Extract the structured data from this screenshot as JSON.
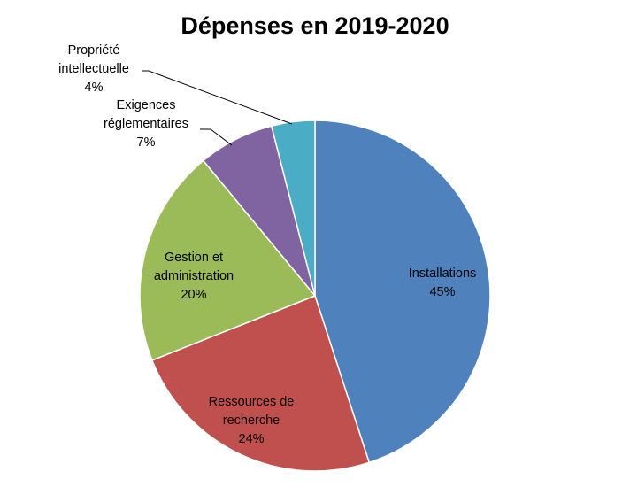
{
  "chart_data": {
    "type": "pie",
    "title": "Dépenses en 2019-2020",
    "slices": [
      {
        "lines": [
          "Installations"
        ],
        "pct_label": "45%",
        "value": 45,
        "color": "#4F81BD"
      },
      {
        "lines": [
          "Ressources de",
          "recherche"
        ],
        "pct_label": "24%",
        "value": 24,
        "color": "#C0504D"
      },
      {
        "lines": [
          "Gestion et",
          "administration"
        ],
        "pct_label": "20%",
        "value": 20,
        "color": "#9BBB59"
      },
      {
        "lines": [
          "Exigences",
          "réglementaires"
        ],
        "pct_label": "7%",
        "value": 7,
        "color": "#8064A2"
      },
      {
        "lines": [
          "Propriété",
          "intellectuelle"
        ],
        "pct_label": "4%",
        "value": 4,
        "color": "#4BACC6"
      }
    ],
    "start_angle": "12 o'clock",
    "direction": "clockwise",
    "legend": "none"
  }
}
